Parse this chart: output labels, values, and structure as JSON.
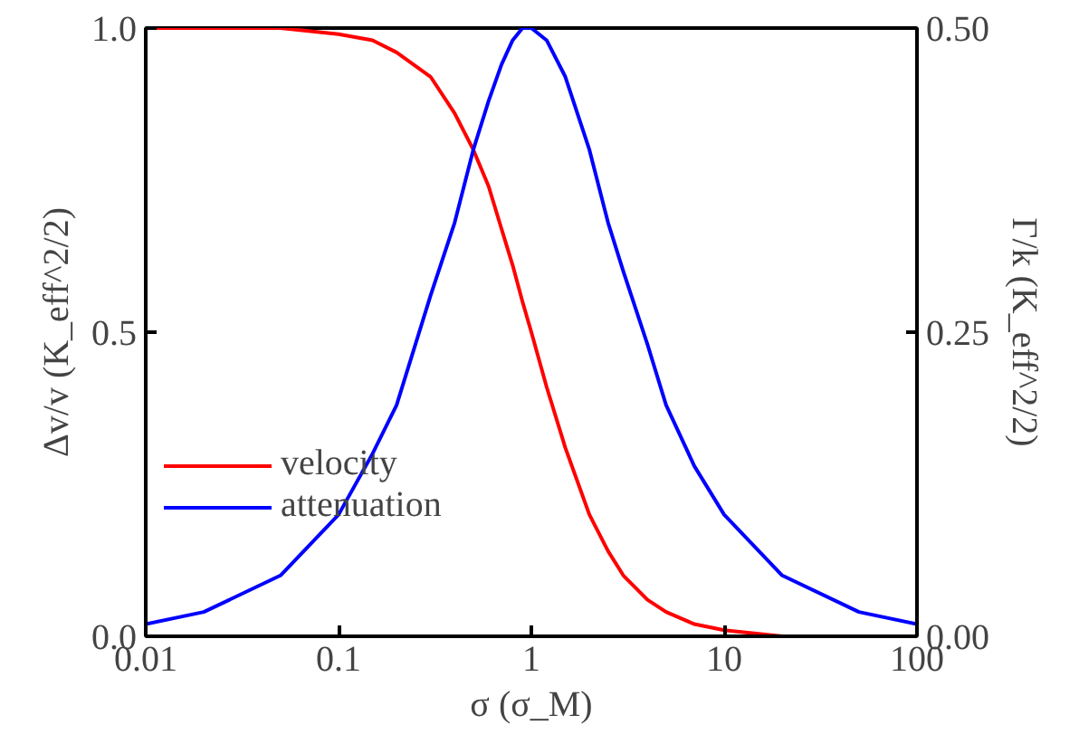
{
  "chart_data": {
    "type": "line",
    "xlabel": "σ (σ_M)",
    "ylabel": "Δv/v (K_eff^2/2)",
    "y2label": "Γ/k (K_eff^2/2)",
    "x": [
      0.01,
      0.02,
      0.05,
      0.1,
      0.15,
      0.2,
      0.3,
      0.4,
      0.5,
      0.6,
      0.7,
      0.8,
      0.9,
      1,
      1.2,
      1.5,
      2,
      2.5,
      3,
      4,
      5,
      7,
      10,
      20,
      50,
      100
    ],
    "series": [
      {
        "name": "velocity",
        "color": "#ff0000",
        "values": [
          1.0,
          1.0,
          1.0,
          0.99,
          0.98,
          0.96,
          0.92,
          0.86,
          0.8,
          0.74,
          0.67,
          0.61,
          0.55,
          0.5,
          0.41,
          0.31,
          0.2,
          0.14,
          0.1,
          0.06,
          0.04,
          0.02,
          0.01,
          0.0,
          0.0,
          0.0
        ]
      },
      {
        "name": "attenuation",
        "color": "#0000ff",
        "axis": "y2",
        "values": [
          0.01,
          0.02,
          0.05,
          0.1,
          0.15,
          0.19,
          0.28,
          0.34,
          0.4,
          0.44,
          0.47,
          0.49,
          0.5,
          0.5,
          0.49,
          0.46,
          0.4,
          0.34,
          0.3,
          0.24,
          0.19,
          0.14,
          0.1,
          0.05,
          0.02,
          0.01
        ]
      }
    ],
    "log": "x",
    "xlim": [
      0.01,
      100
    ],
    "xticks": [
      {
        "value": 0.01,
        "label": "0.01"
      },
      {
        "value": 0.1,
        "label": "0.1"
      },
      1,
      10,
      100
    ],
    "ylim": [
      0,
      1
    ],
    "yticks": [
      {
        "value": 0,
        "label": "0.0"
      },
      {
        "value": 0.5,
        "label": "0.5"
      },
      {
        "value": 1,
        "label": "1.0"
      }
    ],
    "y2lim": [
      0,
      0.5
    ],
    "y2ticks": [
      {
        "value": 0,
        "label": "0.00"
      },
      {
        "value": 0.25,
        "label": "0.25"
      },
      {
        "value": 0.5,
        "label": "0.50"
      }
    ],
    "grid": false,
    "legend": "center left",
    "line_style": "solid",
    "marker": "none"
  }
}
